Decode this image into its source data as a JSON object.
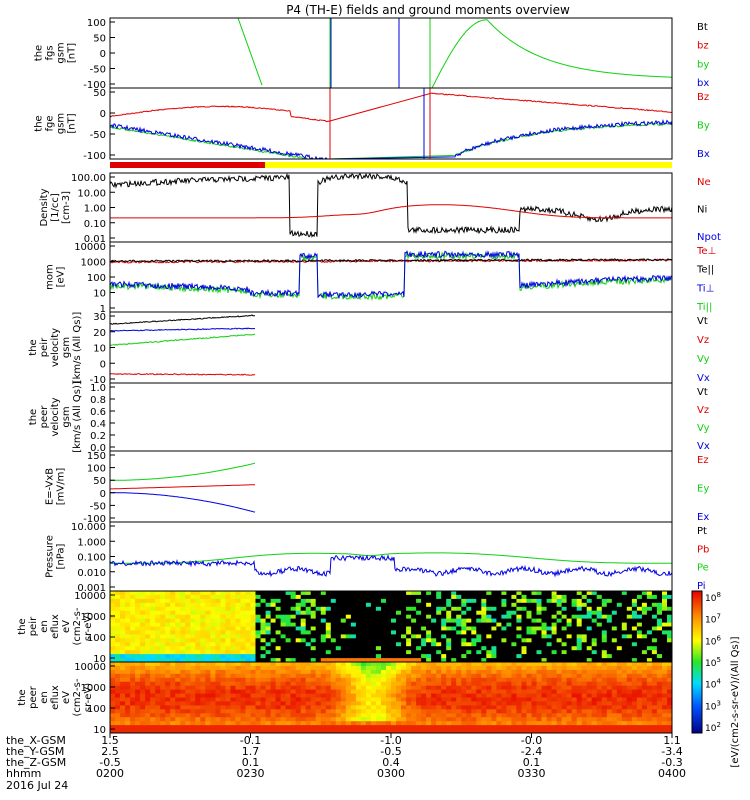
{
  "title": "P4 (TH-E) fields and ground moments overview",
  "date_label": "2016 Jul 24",
  "colors": {
    "black": "#000000",
    "red": "#e00000",
    "green": "#10d010",
    "blue": "#0000e0",
    "yellow": "#ffff00"
  },
  "chart_data": [
    {
      "type": "line",
      "ylabel_lines": [
        "the",
        "fgs",
        "gsm",
        "[nT]"
      ],
      "ytick_labels": [
        "100",
        "50",
        "0",
        "-50",
        "-100"
      ],
      "ylim": [
        -100,
        100
      ],
      "legend": [
        {
          "text": "Bt",
          "color": "#000000"
        },
        {
          "text": "bz",
          "color": "#e00000"
        },
        {
          "text": "by",
          "color": "#10d010"
        },
        {
          "text": "bx",
          "color": "#0000e0"
        }
      ]
    },
    {
      "type": "line",
      "ylabel_lines": [
        "the",
        "fge",
        "gsm",
        "[nT]"
      ],
      "ytick_labels": [
        "50",
        "0",
        "-50",
        "-100"
      ],
      "ylim": [
        -130,
        70
      ],
      "legend": [
        {
          "text": "Bz",
          "color": "#e00000"
        },
        {
          "text": "By",
          "color": "#10d010"
        },
        {
          "text": "Bx",
          "color": "#0000e0"
        }
      ]
    },
    {
      "type": "line",
      "ylabel_lines": [
        "Density",
        "[1/cc]",
        "[cm-3]"
      ],
      "ytick_labels": [
        "100.00",
        "10.00",
        "1.00",
        "0.10",
        "0.01"
      ],
      "ylim": [
        0.01,
        100
      ],
      "legend": [
        {
          "text": "Ne",
          "color": "#e00000"
        },
        {
          "text": "Ni",
          "color": "#000000"
        },
        {
          "text": "Npot",
          "color": "#0000e0"
        }
      ]
    },
    {
      "type": "line",
      "ylabel_lines": [
        "mom",
        "[eV]"
      ],
      "ytick_labels": [
        "10000",
        "1000",
        "100",
        "10",
        "1"
      ],
      "ylim": [
        1,
        10000
      ],
      "legend": [
        {
          "text": "Te⊥",
          "color": "#e00000"
        },
        {
          "text": "Te||",
          "color": "#000000"
        },
        {
          "text": "Ti⊥",
          "color": "#0000e0"
        },
        {
          "text": "Ti||",
          "color": "#10d010"
        }
      ]
    },
    {
      "type": "line",
      "ylabel_lines": [
        "the",
        "peir",
        "velocity",
        "gsm",
        "[km/s (All Qs)]"
      ],
      "ytick_labels": [
        "30",
        "20",
        "10",
        "0",
        "-10"
      ],
      "ylim": [
        -15,
        32
      ],
      "legend": [
        {
          "text": "Vt",
          "color": "#000000"
        },
        {
          "text": "Vz",
          "color": "#e00000"
        },
        {
          "text": "Vy",
          "color": "#10d010"
        },
        {
          "text": "Vx",
          "color": "#0000e0"
        }
      ]
    },
    {
      "type": "line",
      "ylabel_lines": [
        "the",
        "peer",
        "velocity",
        "gsm",
        "[km/s (All Qs)]"
      ],
      "ytick_labels": [
        "1.0",
        "0.8",
        "0.6",
        "0.4",
        "0.2",
        "0.0"
      ],
      "ylim": [
        0,
        1
      ],
      "legend": [
        {
          "text": "Vt",
          "color": "#000000"
        },
        {
          "text": "Vz",
          "color": "#e00000"
        },
        {
          "text": "Vy",
          "color": "#10d010"
        },
        {
          "text": "Vx",
          "color": "#0000e0"
        }
      ]
    },
    {
      "type": "line",
      "ylabel_lines": [
        "E=-VxB",
        "[mV/m]"
      ],
      "ytick_labels": [
        "150",
        "100",
        "50",
        "0",
        "-50",
        "-100"
      ],
      "ylim": [
        -140,
        150
      ],
      "legend": [
        {
          "text": "Ez",
          "color": "#e00000"
        },
        {
          "text": "Ey",
          "color": "#10d010"
        },
        {
          "text": "Ex",
          "color": "#0000e0"
        }
      ]
    },
    {
      "type": "line",
      "ylabel_lines": [
        "Pressure",
        "[nPa]"
      ],
      "ytick_labels": [
        "10.000",
        "1.000",
        "0.100",
        "0.010",
        "0.001"
      ],
      "ylim": [
        0.001,
        10
      ],
      "legend": [
        {
          "text": "Pt",
          "color": "#000000"
        },
        {
          "text": "Pb",
          "color": "#e00000"
        },
        {
          "text": "Pe",
          "color": "#10d010"
        },
        {
          "text": "Pi",
          "color": "#0000e0"
        }
      ]
    },
    {
      "type": "heatmap",
      "ylabel_lines": [
        "the",
        "peir",
        "en",
        "eflux",
        "eV",
        "(cm2-s-",
        "sr-eV)"
      ],
      "ytick_labels": [
        "10000",
        "1000",
        "100",
        "10"
      ]
    },
    {
      "type": "heatmap",
      "ylabel_lines": [
        "the",
        "peer",
        "en",
        "eflux",
        "eV",
        "(cm2-s-",
        "sr-eV)"
      ],
      "ytick_labels": [
        "10000",
        "1000",
        "100",
        "10"
      ]
    }
  ],
  "colorbar": {
    "label": "[eV/(cm2-s-sr-eV)/(All Qs)]",
    "exponents": [
      "8",
      "7",
      "6",
      "5",
      "4",
      "3",
      "2"
    ]
  },
  "x_axis": {
    "row_labels": [
      "the_X-GSM",
      "the_Y-GSM",
      "the_Z-GSM",
      "hhmm"
    ],
    "columns": [
      [
        "1.5",
        "2.5",
        "-0.5",
        "0200"
      ],
      [
        "-0.1",
        "1.7",
        "0.1",
        "0230"
      ],
      [
        "-1.0",
        "-0.5",
        "0.4",
        "0300"
      ],
      [
        "-0.0",
        "-2.4",
        "0.1",
        "0330"
      ],
      [
        "1.1",
        "-3.4",
        "-0.3",
        "0400"
      ]
    ]
  }
}
